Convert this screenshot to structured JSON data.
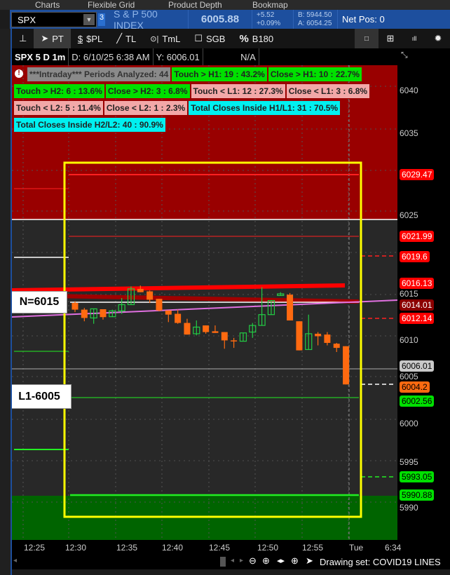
{
  "tabs": [
    "Charts",
    "Flexible Grid",
    "Product Depth",
    "Bookmap"
  ],
  "header": {
    "symbol": "SPX",
    "badge": "3",
    "name": "S & P 500 INDEX",
    "last": "6005.88",
    "change": "+5.52",
    "change_pct": "+0.09%",
    "bid": "B: 5944.50",
    "ask": "A: 6054.25",
    "net_pos": "Net Pos: 0"
  },
  "toolbar": {
    "pin": "pin-icon",
    "pt": "PT",
    "spl": "$PL",
    "tl": "TL",
    "tml": "TmL",
    "sgb": "SGB",
    "b180": "B180"
  },
  "info": {
    "title": "SPX 5 D 1m",
    "date": "D: 6/10/25 6:38 AM",
    "y": "Y: 6006.01",
    "na": "N/A"
  },
  "stats": [
    {
      "t": "***Intraday*** Periods Analyzed: 44",
      "c": "gr"
    },
    {
      "t": "Touch > H1: 19 : 43.2%",
      "c": "g"
    },
    {
      "t": "Close > H1: 10 : 22.7%",
      "c": "g"
    },
    {
      "t": "Touch > H2: 6 : 13.6%",
      "c": "g"
    },
    {
      "t": "Close > H2: 3 : 6.8%",
      "c": "g"
    },
    {
      "t": "Touch < L1: 12 : 27.3%",
      "c": "p"
    },
    {
      "t": "Close < L1: 3 : 6.8%",
      "c": "p"
    },
    {
      "t": "Touch < L2: 5 : 11.4%",
      "c": "p"
    },
    {
      "t": "Close < L2: 1 : 2.3%",
      "c": "p"
    },
    {
      "t": "Total Closes Inside H1/L1: 31 : 70.5%",
      "c": "c"
    },
    {
      "t": "Total Closes Inside H2/L2: 40 : 90.9%",
      "c": "c"
    }
  ],
  "notes": {
    "n": "N=6015",
    "l1": "L1-6005"
  },
  "axis_ticks": [
    "6040",
    "6035",
    "6025",
    "6015",
    "6010",
    "6005",
    "6000",
    "5995",
    "5990"
  ],
  "price_labels": [
    {
      "v": "6029.47",
      "bg": "#ff0000",
      "fg": "#fff",
      "tri": true
    },
    {
      "v": "6021.99",
      "bg": "#ff0000",
      "fg": "#fff",
      "tri": true
    },
    {
      "v": "6019.6",
      "bg": "#ff0000",
      "fg": "#fff",
      "tri": false
    },
    {
      "v": "6016.13",
      "bg": "#ff0000",
      "fg": "#fff",
      "tri": false
    },
    {
      "v": "6014.01",
      "bg": "#8b0000",
      "fg": "#fff",
      "tri": true
    },
    {
      "v": "6012.14",
      "bg": "#ff0000",
      "fg": "#fff",
      "tri": false
    },
    {
      "v": "6006.01",
      "bg": "#c8c8c8",
      "fg": "#000",
      "tri": false
    },
    {
      "v": "6004.2",
      "bg": "#ff6a10",
      "fg": "#000",
      "tri": false
    },
    {
      "v": "6002.56",
      "bg": "#00e000",
      "fg": "#000",
      "tri": true
    },
    {
      "v": "5993.05",
      "bg": "#00e000",
      "fg": "#000",
      "tri": false
    },
    {
      "v": "5990.88",
      "bg": "#00e000",
      "fg": "#000",
      "tri": true
    }
  ],
  "time_labels": [
    "12:25",
    "12:30",
    "12:35",
    "12:40",
    "12:45",
    "12:50",
    "12:55",
    "Tue",
    "6:34"
  ],
  "bottom": {
    "drawing_set": "Drawing set: COVID19 LINES"
  },
  "colors": {
    "up": "#22cc44",
    "down": "#ff6a10",
    "red_zone": "#990000",
    "green_zone": "#006400",
    "box": "#ffff00"
  },
  "candles": [
    [
      6014.0,
      6014.2,
      6012.9,
      6013.2
    ],
    [
      6013.2,
      6013.4,
      6011.8,
      6012.2
    ],
    [
      6012.2,
      6013.3,
      6011.5,
      6013.3
    ],
    [
      6013.25,
      6013.25,
      6012.0,
      6012.3
    ],
    [
      6012.35,
      6013.2,
      6012.35,
      6013.05
    ],
    [
      6013.05,
      6014.6,
      6012.7,
      6013.8
    ],
    [
      6013.8,
      6016.0,
      6013.8,
      6015.7
    ],
    [
      6015.7,
      6016.1,
      6015.3,
      6015.3
    ],
    [
      6015.4,
      6015.5,
      6014.0,
      6014.4
    ],
    [
      6014.5,
      6014.5,
      6013.0,
      6013.1
    ],
    [
      6013.1,
      6013.1,
      6011.7,
      6012.6
    ],
    [
      6012.7,
      6013.2,
      6011.5,
      6011.6
    ],
    [
      6011.6,
      6012.1,
      6010.2,
      6010.2
    ],
    [
      6010.3,
      6011.9,
      6010.1,
      6011.1
    ],
    [
      6011.3,
      6011.3,
      6010.3,
      6010.5
    ],
    [
      6010.6,
      6011.3,
      6010.4,
      6010.4
    ],
    [
      6010.5,
      6010.5,
      6008.5,
      6009.5
    ],
    [
      6009.5,
      6009.8,
      6008.6,
      6009.4
    ],
    [
      6009.4,
      6010.4,
      6009.4,
      6010.4
    ],
    [
      6010.5,
      6011.6,
      6009.8,
      6011.3
    ],
    [
      6011.3,
      6015.9,
      6011.3,
      6012.6
    ],
    [
      6012.6,
      6014.3,
      6012.6,
      6014.3
    ],
    [
      6014.9,
      6015.3,
      6014.9,
      6015.1
    ],
    [
      6015.0,
      6015.2,
      6011.9,
      6011.9
    ],
    [
      6011.8,
      6011.8,
      6008.3,
      6008.3
    ],
    [
      6008.4,
      6012.6,
      6008.4,
      6010.3
    ],
    [
      6010.3,
      6010.5,
      6008.9,
      6010.0
    ],
    [
      6010.2,
      6010.5,
      6008.9,
      6009.2
    ],
    [
      6009.1,
      6009.2,
      6008.1,
      6008.6
    ],
    [
      6008.8,
      6008.8,
      6004.2,
      6004.2
    ]
  ]
}
